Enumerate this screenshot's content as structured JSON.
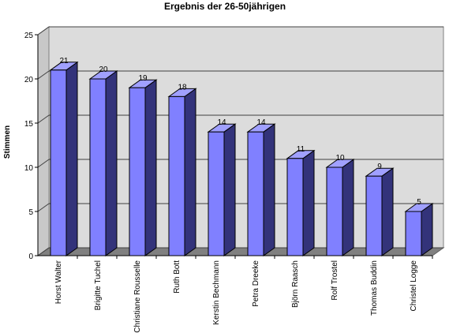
{
  "chart_data": {
    "type": "bar3d",
    "title": "Ergebnis der 26-50jährigen",
    "y_label": "Stimmen",
    "categories": [
      "Horst Walter",
      "Brigitte Tuchel",
      "Christiane Rousselle",
      "Ruth Bott",
      "Kerstin Bechmann",
      "Petra Dreeke",
      "Björn Raasch",
      "Rolf Trostel",
      "Thomas Buddin",
      "Christel Logge"
    ],
    "values": [
      21,
      20,
      19,
      18,
      14,
      14,
      11,
      10,
      9,
      5
    ],
    "color": "#8080ff",
    "ylim": [
      0,
      25
    ],
    "yticks": [
      0,
      5,
      10,
      15,
      20,
      25
    ],
    "grid": true
  }
}
